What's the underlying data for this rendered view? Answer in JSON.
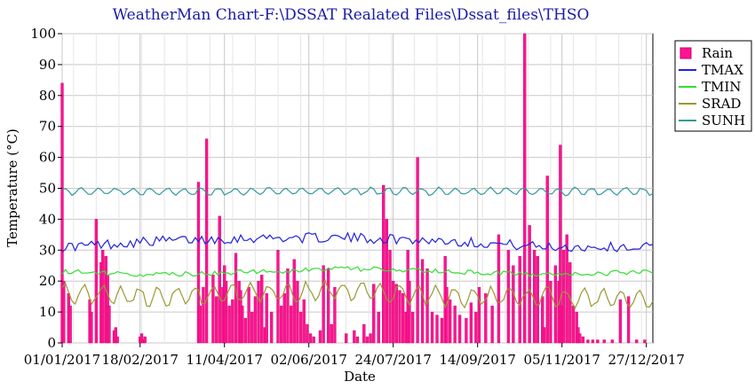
{
  "chart_data": {
    "type": "line",
    "title": "WeatherMan Chart-F:\\DSSAT Realated Files\\Dssat_files\\THSO",
    "xlabel": "Date",
    "ylabel": "Temperature (°C)",
    "xlim": [
      "01/01/2017",
      "31/12/2017"
    ],
    "ylim": [
      0,
      100
    ],
    "grid": true,
    "legend_position": "right",
    "x_ticks": [
      "01/01/2017",
      "18/02/2017",
      "11/04/2017",
      "02/06/2017",
      "24/07/2017",
      "14/09/2017",
      "05/11/2017",
      "27/12/2017"
    ],
    "y_ticks": [
      0,
      10,
      20,
      30,
      40,
      50,
      60,
      70,
      80,
      90,
      100
    ],
    "series": [
      {
        "name": "Rain",
        "type": "bar",
        "color": "#ff1493",
        "days": [
          1,
          2,
          5,
          6,
          18,
          19,
          22,
          25,
          26,
          28,
          29,
          30,
          33,
          34,
          35,
          49,
          50,
          51,
          52,
          85,
          86,
          88,
          90,
          94,
          96,
          98,
          100,
          101,
          102,
          104,
          106,
          108,
          110,
          111,
          112,
          114,
          116,
          118,
          120,
          122,
          124,
          126,
          127,
          130,
          134,
          136,
          138,
          140,
          142,
          144,
          146,
          148,
          150,
          152,
          154,
          156,
          160,
          162,
          165,
          167,
          169,
          176,
          181,
          183,
          187,
          189,
          191,
          193,
          196,
          199,
          201,
          203,
          205,
          207,
          209,
          211,
          213,
          214,
          215,
          217,
          220,
          223,
          226,
          229,
          232,
          235,
          237,
          238,
          240,
          243,
          246,
          250,
          253,
          256,
          258,
          262,
          266,
          270,
          276,
          279,
          283,
          286,
          289,
          292,
          294,
          297,
          298,
          300,
          302,
          305,
          307,
          308,
          309,
          310,
          312,
          314,
          316,
          318,
          319,
          320,
          322,
          325,
          328,
          331,
          335,
          340,
          345,
          350,
          355,
          360
        ],
        "values": [
          84,
          20,
          16,
          12,
          14,
          10,
          40,
          26,
          30,
          28,
          22,
          12,
          4,
          5,
          2,
          2,
          3,
          1,
          2,
          52,
          12,
          18,
          66,
          22,
          15,
          41,
          18,
          25,
          20,
          12,
          14,
          29,
          20,
          17,
          12,
          8,
          18,
          10,
          15,
          20,
          22,
          5,
          16,
          10,
          30,
          12,
          16,
          24,
          12,
          27,
          20,
          10,
          14,
          6,
          3,
          2,
          4,
          25,
          24,
          6,
          18,
          3,
          4,
          2,
          6,
          2,
          3,
          19,
          10,
          51,
          40,
          30,
          20,
          19,
          17,
          16,
          10,
          30,
          20,
          10,
          60,
          27,
          24,
          10,
          9,
          8,
          28,
          18,
          14,
          12,
          9,
          8,
          13,
          10,
          18,
          16,
          12,
          35,
          30,
          25,
          28,
          102,
          38,
          30,
          28,
          15,
          5,
          54,
          20,
          25,
          20,
          64,
          12,
          30,
          35,
          26,
          12,
          10,
          5,
          3,
          2,
          1,
          1,
          1,
          1,
          1,
          14,
          15,
          1,
          1
        ]
      },
      {
        "name": "TMAX",
        "type": "line",
        "color": "#2222dd",
        "base": 32,
        "amplitude": 2.5,
        "jitter": 1.5,
        "days": [
          1,
          60,
          120,
          180,
          240,
          300,
          365
        ],
        "values": [
          31,
          33,
          34,
          34,
          33,
          31,
          31
        ]
      },
      {
        "name": "TMIN",
        "type": "line",
        "color": "#33dd33",
        "days": [
          1,
          60,
          120,
          180,
          240,
          300,
          365
        ],
        "values": [
          23,
          22,
          23,
          24,
          23,
          22,
          23
        ]
      },
      {
        "name": "SRAD",
        "type": "line",
        "color": "#999933",
        "days": [
          1,
          60,
          120,
          180,
          240,
          300,
          365
        ],
        "values": [
          16,
          15,
          16,
          17,
          15,
          15,
          14
        ]
      },
      {
        "name": "SUNH",
        "type": "line",
        "color": "#339999",
        "days": [
          1,
          60,
          120,
          180,
          240,
          300,
          365
        ],
        "values": [
          49,
          49,
          49,
          49,
          49,
          49,
          49
        ]
      }
    ]
  }
}
